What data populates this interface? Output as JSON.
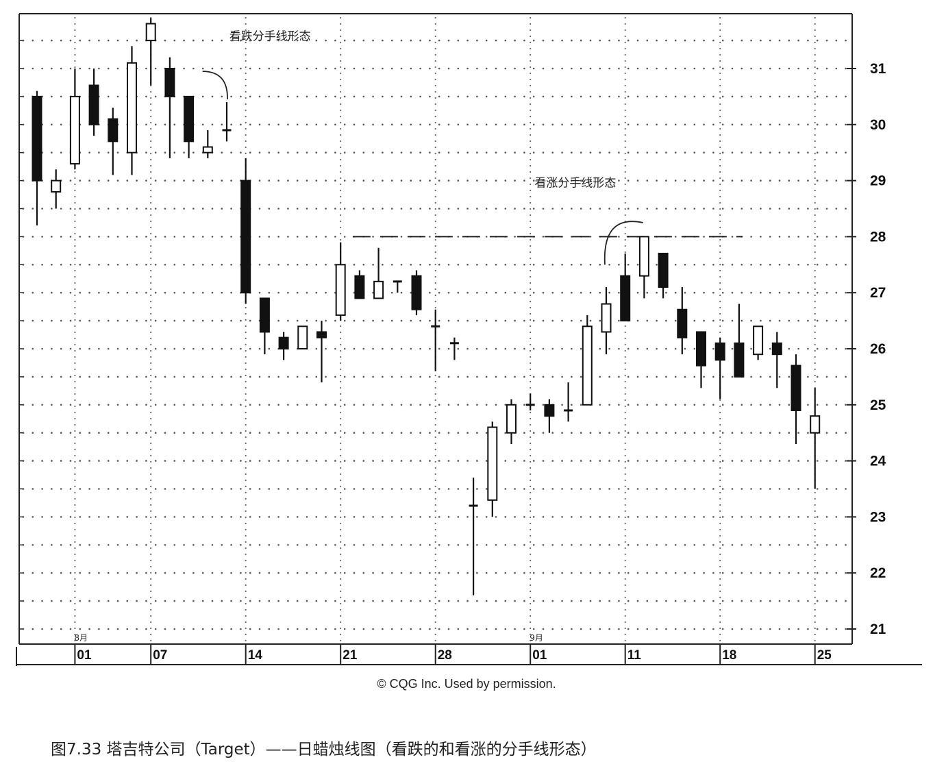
{
  "caption": "图7.33 塔吉特公司（Target）——日蜡烛线图（看跌的和看涨的分手线形态）",
  "credit": "© CQG Inc. Used by permission.",
  "chart_data": {
    "type": "candlestick",
    "ylim": [
      20.8,
      31.9
    ],
    "y_ticks": [
      21,
      22,
      23,
      24,
      25,
      26,
      27,
      28,
      29,
      30,
      31
    ],
    "x_tick_labels": [
      {
        "label": "01",
        "index": 2
      },
      {
        "label": "07",
        "index": 6
      },
      {
        "label": "14",
        "index": 11
      },
      {
        "label": "21",
        "index": 16
      },
      {
        "label": "28",
        "index": 21
      },
      {
        "label": "01",
        "index": 26
      },
      {
        "label": "11",
        "index": 31
      },
      {
        "label": "18",
        "index": 36
      },
      {
        "label": "25",
        "index": 41
      }
    ],
    "month_labels": [
      {
        "label": "8月",
        "index": 2
      },
      {
        "label": "9月",
        "index": 26
      }
    ],
    "resistance_line": {
      "y": 28.0,
      "from_index": 17,
      "to_index": 37
    },
    "annotations": [
      {
        "text": "看跌分手线形态",
        "anchor_index": 11,
        "anchor_value": 31.2
      },
      {
        "text": "看涨分手线形态",
        "anchor_index": 32,
        "anchor_value": 28.5
      }
    ],
    "candles": [
      {
        "i": 0,
        "open": 30.5,
        "high": 30.6,
        "low": 28.2,
        "close": 29.0
      },
      {
        "i": 1,
        "open": 28.8,
        "high": 29.2,
        "low": 28.5,
        "close": 29.0
      },
      {
        "i": 2,
        "open": 29.3,
        "high": 31.0,
        "low": 29.2,
        "close": 30.5
      },
      {
        "i": 3,
        "open": 30.7,
        "high": 31.0,
        "low": 29.8,
        "close": 30.0
      },
      {
        "i": 4,
        "open": 30.1,
        "high": 30.3,
        "low": 29.1,
        "close": 29.7
      },
      {
        "i": 5,
        "open": 29.5,
        "high": 31.4,
        "low": 29.1,
        "close": 31.1
      },
      {
        "i": 6,
        "open": 31.5,
        "high": 31.9,
        "low": 30.7,
        "close": 31.8
      },
      {
        "i": 7,
        "open": 31.0,
        "high": 31.2,
        "low": 29.4,
        "close": 30.5
      },
      {
        "i": 8,
        "open": 30.5,
        "high": 30.5,
        "low": 29.4,
        "close": 29.7
      },
      {
        "i": 9,
        "open": 29.5,
        "high": 29.9,
        "low": 29.4,
        "close": 29.6
      },
      {
        "i": 10,
        "open": 29.9,
        "high": 30.4,
        "low": 29.7,
        "close": 29.9
      },
      {
        "i": 11,
        "open": 29.0,
        "high": 29.4,
        "low": 26.8,
        "close": 27.0
      },
      {
        "i": 12,
        "open": 26.9,
        "high": 26.9,
        "low": 25.9,
        "close": 26.3
      },
      {
        "i": 13,
        "open": 26.2,
        "high": 26.3,
        "low": 25.8,
        "close": 26.0
      },
      {
        "i": 14,
        "open": 26.0,
        "high": 26.4,
        "low": 26.0,
        "close": 26.4
      },
      {
        "i": 15,
        "open": 26.3,
        "high": 26.5,
        "low": 25.4,
        "close": 26.2
      },
      {
        "i": 16,
        "open": 26.6,
        "high": 27.9,
        "low": 26.5,
        "close": 27.5
      },
      {
        "i": 17,
        "open": 27.3,
        "high": 27.4,
        "low": 26.9,
        "close": 26.9
      },
      {
        "i": 18,
        "open": 26.9,
        "high": 27.8,
        "low": 26.9,
        "close": 27.2
      },
      {
        "i": 19,
        "open": 27.2,
        "high": 27.2,
        "low": 27.0,
        "close": 27.2
      },
      {
        "i": 20,
        "open": 27.3,
        "high": 27.4,
        "low": 26.6,
        "close": 26.7
      },
      {
        "i": 21,
        "open": 26.4,
        "high": 26.7,
        "low": 25.6,
        "close": 26.4
      },
      {
        "i": 22,
        "open": 26.1,
        "high": 26.2,
        "low": 25.8,
        "close": 26.1
      },
      {
        "i": 23,
        "open": 23.2,
        "high": 23.7,
        "low": 21.6,
        "close": 23.2
      },
      {
        "i": 24,
        "open": 23.3,
        "high": 24.7,
        "low": 23.0,
        "close": 24.6
      },
      {
        "i": 25,
        "open": 24.5,
        "high": 25.1,
        "low": 24.3,
        "close": 25.0
      },
      {
        "i": 26,
        "open": 25.0,
        "high": 25.2,
        "low": 24.9,
        "close": 25.0
      },
      {
        "i": 27,
        "open": 25.0,
        "high": 25.1,
        "low": 24.5,
        "close": 24.8
      },
      {
        "i": 28,
        "open": 24.9,
        "high": 25.4,
        "low": 24.7,
        "close": 24.9
      },
      {
        "i": 29,
        "open": 25.0,
        "high": 26.6,
        "low": 25.0,
        "close": 26.4
      },
      {
        "i": 30,
        "open": 26.3,
        "high": 27.1,
        "low": 25.9,
        "close": 26.8
      },
      {
        "i": 31,
        "open": 27.3,
        "high": 27.7,
        "low": 26.5,
        "close": 26.5
      },
      {
        "i": 32,
        "open": 27.3,
        "high": 28.0,
        "low": 26.9,
        "close": 28.0
      },
      {
        "i": 33,
        "open": 27.7,
        "high": 27.7,
        "low": 26.9,
        "close": 27.1
      },
      {
        "i": 34,
        "open": 26.7,
        "high": 27.1,
        "low": 25.9,
        "close": 26.2
      },
      {
        "i": 35,
        "open": 26.3,
        "high": 26.3,
        "low": 25.3,
        "close": 25.7
      },
      {
        "i": 36,
        "open": 26.1,
        "high": 26.2,
        "low": 25.1,
        "close": 25.8
      },
      {
        "i": 37,
        "open": 26.1,
        "high": 26.8,
        "low": 25.5,
        "close": 25.5
      },
      {
        "i": 38,
        "open": 25.9,
        "high": 26.4,
        "low": 25.8,
        "close": 26.4
      },
      {
        "i": 39,
        "open": 26.1,
        "high": 26.3,
        "low": 25.3,
        "close": 25.9
      },
      {
        "i": 40,
        "open": 25.7,
        "high": 25.9,
        "low": 24.3,
        "close": 24.9
      },
      {
        "i": 41,
        "open": 24.5,
        "high": 25.3,
        "low": 23.5,
        "close": 24.8
      }
    ]
  }
}
